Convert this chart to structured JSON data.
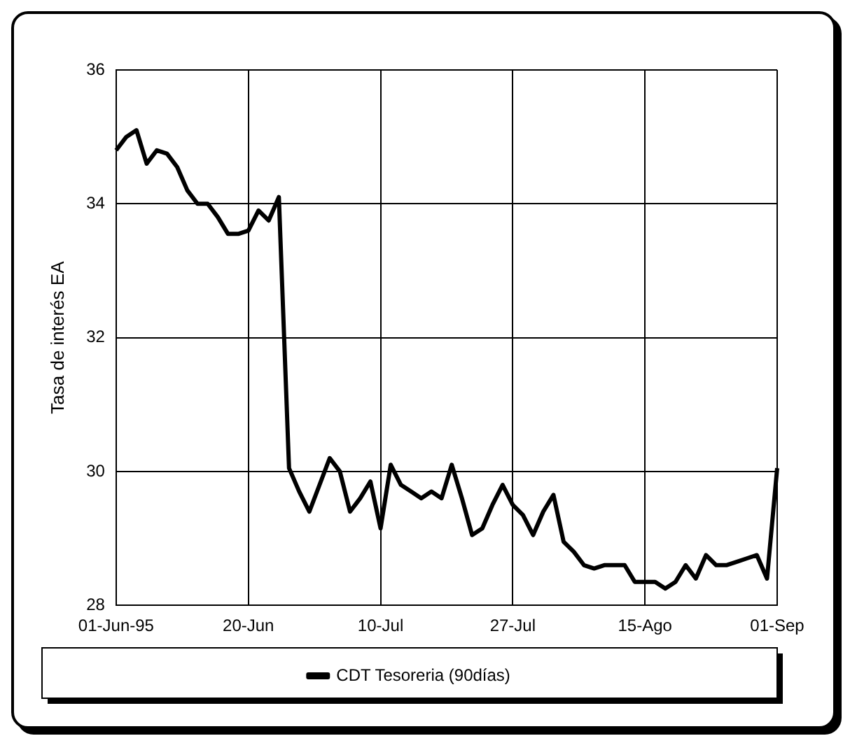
{
  "chart_data": {
    "type": "line",
    "ylabel": "Tasa de interés EA",
    "categories": [
      "01-Jun-95",
      null,
      null,
      null,
      null,
      null,
      null,
      null,
      null,
      null,
      null,
      null,
      null,
      "20-Jun",
      null,
      null,
      null,
      null,
      null,
      null,
      null,
      null,
      null,
      null,
      null,
      null,
      "10-Jul",
      null,
      null,
      null,
      null,
      null,
      null,
      null,
      null,
      null,
      null,
      null,
      null,
      "27-Jul",
      null,
      null,
      null,
      null,
      null,
      null,
      null,
      null,
      null,
      null,
      null,
      null,
      "15-Ago",
      null,
      null,
      null,
      null,
      null,
      null,
      null,
      null,
      null,
      null,
      null,
      null,
      "01-Sep"
    ],
    "series": [
      {
        "name": "CDT Tesoreria (90días)",
        "color": "#000000",
        "values": [
          34.8,
          35.0,
          35.1,
          34.6,
          34.8,
          34.75,
          34.55,
          34.2,
          34.0,
          34.0,
          33.8,
          33.55,
          33.55,
          33.6,
          33.9,
          33.75,
          34.1,
          30.05,
          29.7,
          29.4,
          29.8,
          30.2,
          30.0,
          29.4,
          29.6,
          29.85,
          29.15,
          30.1,
          29.8,
          29.7,
          29.6,
          29.7,
          29.6,
          30.1,
          29.6,
          29.05,
          29.15,
          29.5,
          29.8,
          29.5,
          29.35,
          29.05,
          29.4,
          29.65,
          28.95,
          28.8,
          28.6,
          28.55,
          28.6,
          28.6,
          28.6,
          28.35,
          28.35,
          28.35,
          28.25,
          28.35,
          28.6,
          28.4,
          28.75,
          28.6,
          28.6,
          28.65,
          28.7,
          28.75,
          28.4,
          30.05
        ]
      }
    ],
    "ylim": [
      28,
      36
    ],
    "yticks": [
      28,
      30,
      32,
      34,
      36
    ],
    "grid": true,
    "legend": "bottom",
    "marker": "none",
    "line_style": "solid"
  }
}
